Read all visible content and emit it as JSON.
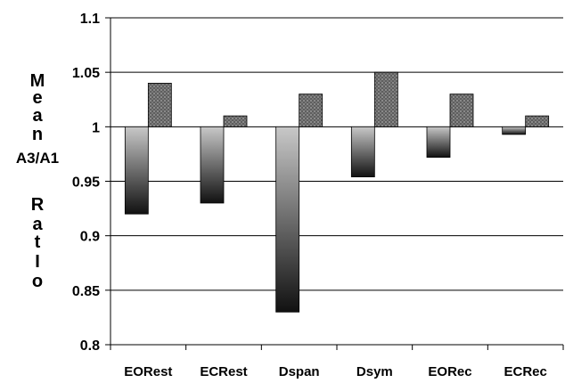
{
  "chart_data": {
    "type": "bar",
    "categories": [
      "EORest",
      "ECRest",
      "Dspan",
      "Dsym",
      "EORec",
      "ECRec"
    ],
    "baseline": 1,
    "series": [
      {
        "values": [
          0.92,
          0.93,
          0.83,
          0.954,
          0.972,
          0.993
        ],
        "fill": "gradient-gray"
      },
      {
        "values": [
          1.04,
          1.01,
          1.03,
          1.05,
          1.03,
          1.01
        ],
        "fill": "dotted-dark"
      }
    ],
    "ylabel_lines": [
      "M",
      "e",
      "a",
      "n",
      "A3/A1",
      "R",
      "a",
      "t",
      "I",
      "o"
    ],
    "ylim": [
      0.8,
      1.1
    ],
    "yticks": [
      "0.8",
      "0.85",
      "0.9",
      "0.95",
      "1",
      "1.05",
      "1.1"
    ],
    "grid": true,
    "legend": "none"
  }
}
